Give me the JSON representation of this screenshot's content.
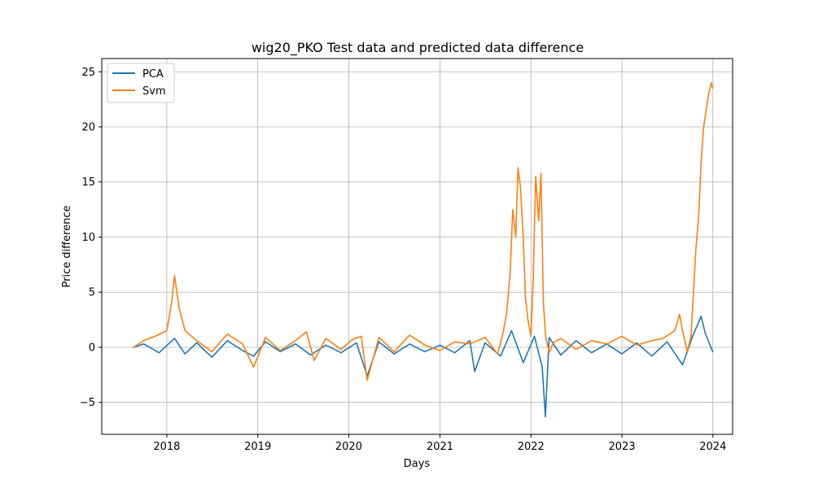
{
  "chart_data": {
    "type": "line",
    "title": "wig20_PKO Test data and predicted data difference",
    "xlabel": "Days",
    "ylabel": "Price difference",
    "x_range": [
      "2017-04-15",
      "2024-03-20"
    ],
    "ylim": [
      -7.9,
      26.2
    ],
    "x_ticks": [
      "2018-01-01",
      "2019-01-01",
      "2020-01-01",
      "2021-01-01",
      "2022-01-01",
      "2023-01-01",
      "2024-01-01"
    ],
    "x_tick_labels": [
      "2018",
      "2019",
      "2020",
      "2021",
      "2022",
      "2023",
      "2024"
    ],
    "y_ticks": [
      -5,
      0,
      5,
      10,
      15,
      20,
      25
    ],
    "y_tick_labels": [
      "−5",
      "0",
      "5",
      "10",
      "15",
      "20",
      "25"
    ],
    "grid": true,
    "legend_position": "top-left",
    "series": [
      {
        "name": "PCA",
        "color": "#1f77b4",
        "x": [
          "2017-08-20",
          "2017-10-01",
          "2017-12-01",
          "2018-02-01",
          "2018-03-15",
          "2018-05-01",
          "2018-07-01",
          "2018-09-01",
          "2018-11-01",
          "2018-12-15",
          "2019-02-01",
          "2019-04-01",
          "2019-06-01",
          "2019-08-01",
          "2019-10-01",
          "2019-12-01",
          "2020-02-01",
          "2020-03-15",
          "2020-05-01",
          "2020-07-01",
          "2020-09-01",
          "2020-11-01",
          "2021-01-01",
          "2021-03-01",
          "2021-05-01",
          "2021-05-20",
          "2021-07-01",
          "2021-09-01",
          "2021-10-15",
          "2021-12-01",
          "2022-01-15",
          "2022-02-15",
          "2022-02-28",
          "2022-03-15",
          "2022-05-01",
          "2022-07-01",
          "2022-09-01",
          "2022-11-01",
          "2023-01-01",
          "2023-03-01",
          "2023-05-01",
          "2023-07-01",
          "2023-09-01",
          "2023-10-15",
          "2023-11-15",
          "2023-12-01",
          "2023-12-31"
        ],
        "values": [
          0.0,
          0.3,
          -0.5,
          0.8,
          -0.6,
          0.4,
          -0.9,
          0.6,
          -0.3,
          -0.8,
          0.5,
          -0.4,
          0.3,
          -0.7,
          0.2,
          -0.5,
          0.4,
          -2.6,
          0.5,
          -0.6,
          0.3,
          -0.4,
          0.2,
          -0.5,
          0.6,
          -2.2,
          0.4,
          -0.8,
          1.5,
          -1.4,
          1.0,
          -1.8,
          -6.3,
          0.9,
          -0.7,
          0.6,
          -0.5,
          0.3,
          -0.6,
          0.4,
          -0.8,
          0.5,
          -1.6,
          1.2,
          2.8,
          1.3,
          -0.4
        ]
      },
      {
        "name": "Svm",
        "color": "#ff7f0e",
        "x": [
          "2017-08-20",
          "2017-10-01",
          "2017-11-15",
          "2018-01-01",
          "2018-01-20",
          "2018-02-01",
          "2018-02-20",
          "2018-03-15",
          "2018-05-01",
          "2018-07-01",
          "2018-09-01",
          "2018-11-01",
          "2018-12-15",
          "2019-02-01",
          "2019-04-01",
          "2019-06-01",
          "2019-07-15",
          "2019-08-15",
          "2019-10-01",
          "2019-12-01",
          "2020-01-15",
          "2020-02-20",
          "2020-03-15",
          "2020-05-01",
          "2020-07-01",
          "2020-09-01",
          "2020-11-01",
          "2021-01-01",
          "2021-03-01",
          "2021-05-01",
          "2021-07-01",
          "2021-08-20",
          "2021-09-10",
          "2021-09-25",
          "2021-10-10",
          "2021-10-20",
          "2021-11-01",
          "2021-11-10",
          "2021-11-20",
          "2021-12-01",
          "2021-12-10",
          "2021-12-20",
          "2022-01-01",
          "2022-01-10",
          "2022-01-20",
          "2022-02-01",
          "2022-02-10",
          "2022-02-20",
          "2022-03-01",
          "2022-03-15",
          "2022-04-01",
          "2022-05-01",
          "2022-07-01",
          "2022-09-01",
          "2022-11-01",
          "2023-01-01",
          "2023-03-01",
          "2023-05-01",
          "2023-06-15",
          "2023-08-01",
          "2023-08-20",
          "2023-09-01",
          "2023-09-20",
          "2023-10-05",
          "2023-10-15",
          "2023-10-25",
          "2023-11-05",
          "2023-11-15",
          "2023-11-25",
          "2023-12-05",
          "2023-12-15",
          "2023-12-25",
          "2023-12-31"
        ],
        "values": [
          0.0,
          0.6,
          1.0,
          1.5,
          4.0,
          6.5,
          3.5,
          1.5,
          0.6,
          -0.4,
          1.2,
          0.3,
          -1.8,
          0.9,
          -0.3,
          0.6,
          1.4,
          -1.2,
          0.8,
          -0.2,
          0.7,
          1.0,
          -3.0,
          0.9,
          -0.4,
          1.1,
          0.2,
          -0.3,
          0.5,
          0.3,
          0.9,
          -0.6,
          1.2,
          3.0,
          7.0,
          12.5,
          10.0,
          16.3,
          14.5,
          10.0,
          4.5,
          2.5,
          1.0,
          6.0,
          15.5,
          11.5,
          15.8,
          4.0,
          1.0,
          -0.5,
          0.4,
          0.8,
          -0.2,
          0.6,
          0.3,
          1.0,
          0.2,
          0.6,
          0.8,
          1.5,
          3.0,
          1.5,
          -0.4,
          1.0,
          5.0,
          9.0,
          12.0,
          17.0,
          20.0,
          21.5,
          23.0,
          24.0,
          23.5
        ]
      }
    ]
  }
}
